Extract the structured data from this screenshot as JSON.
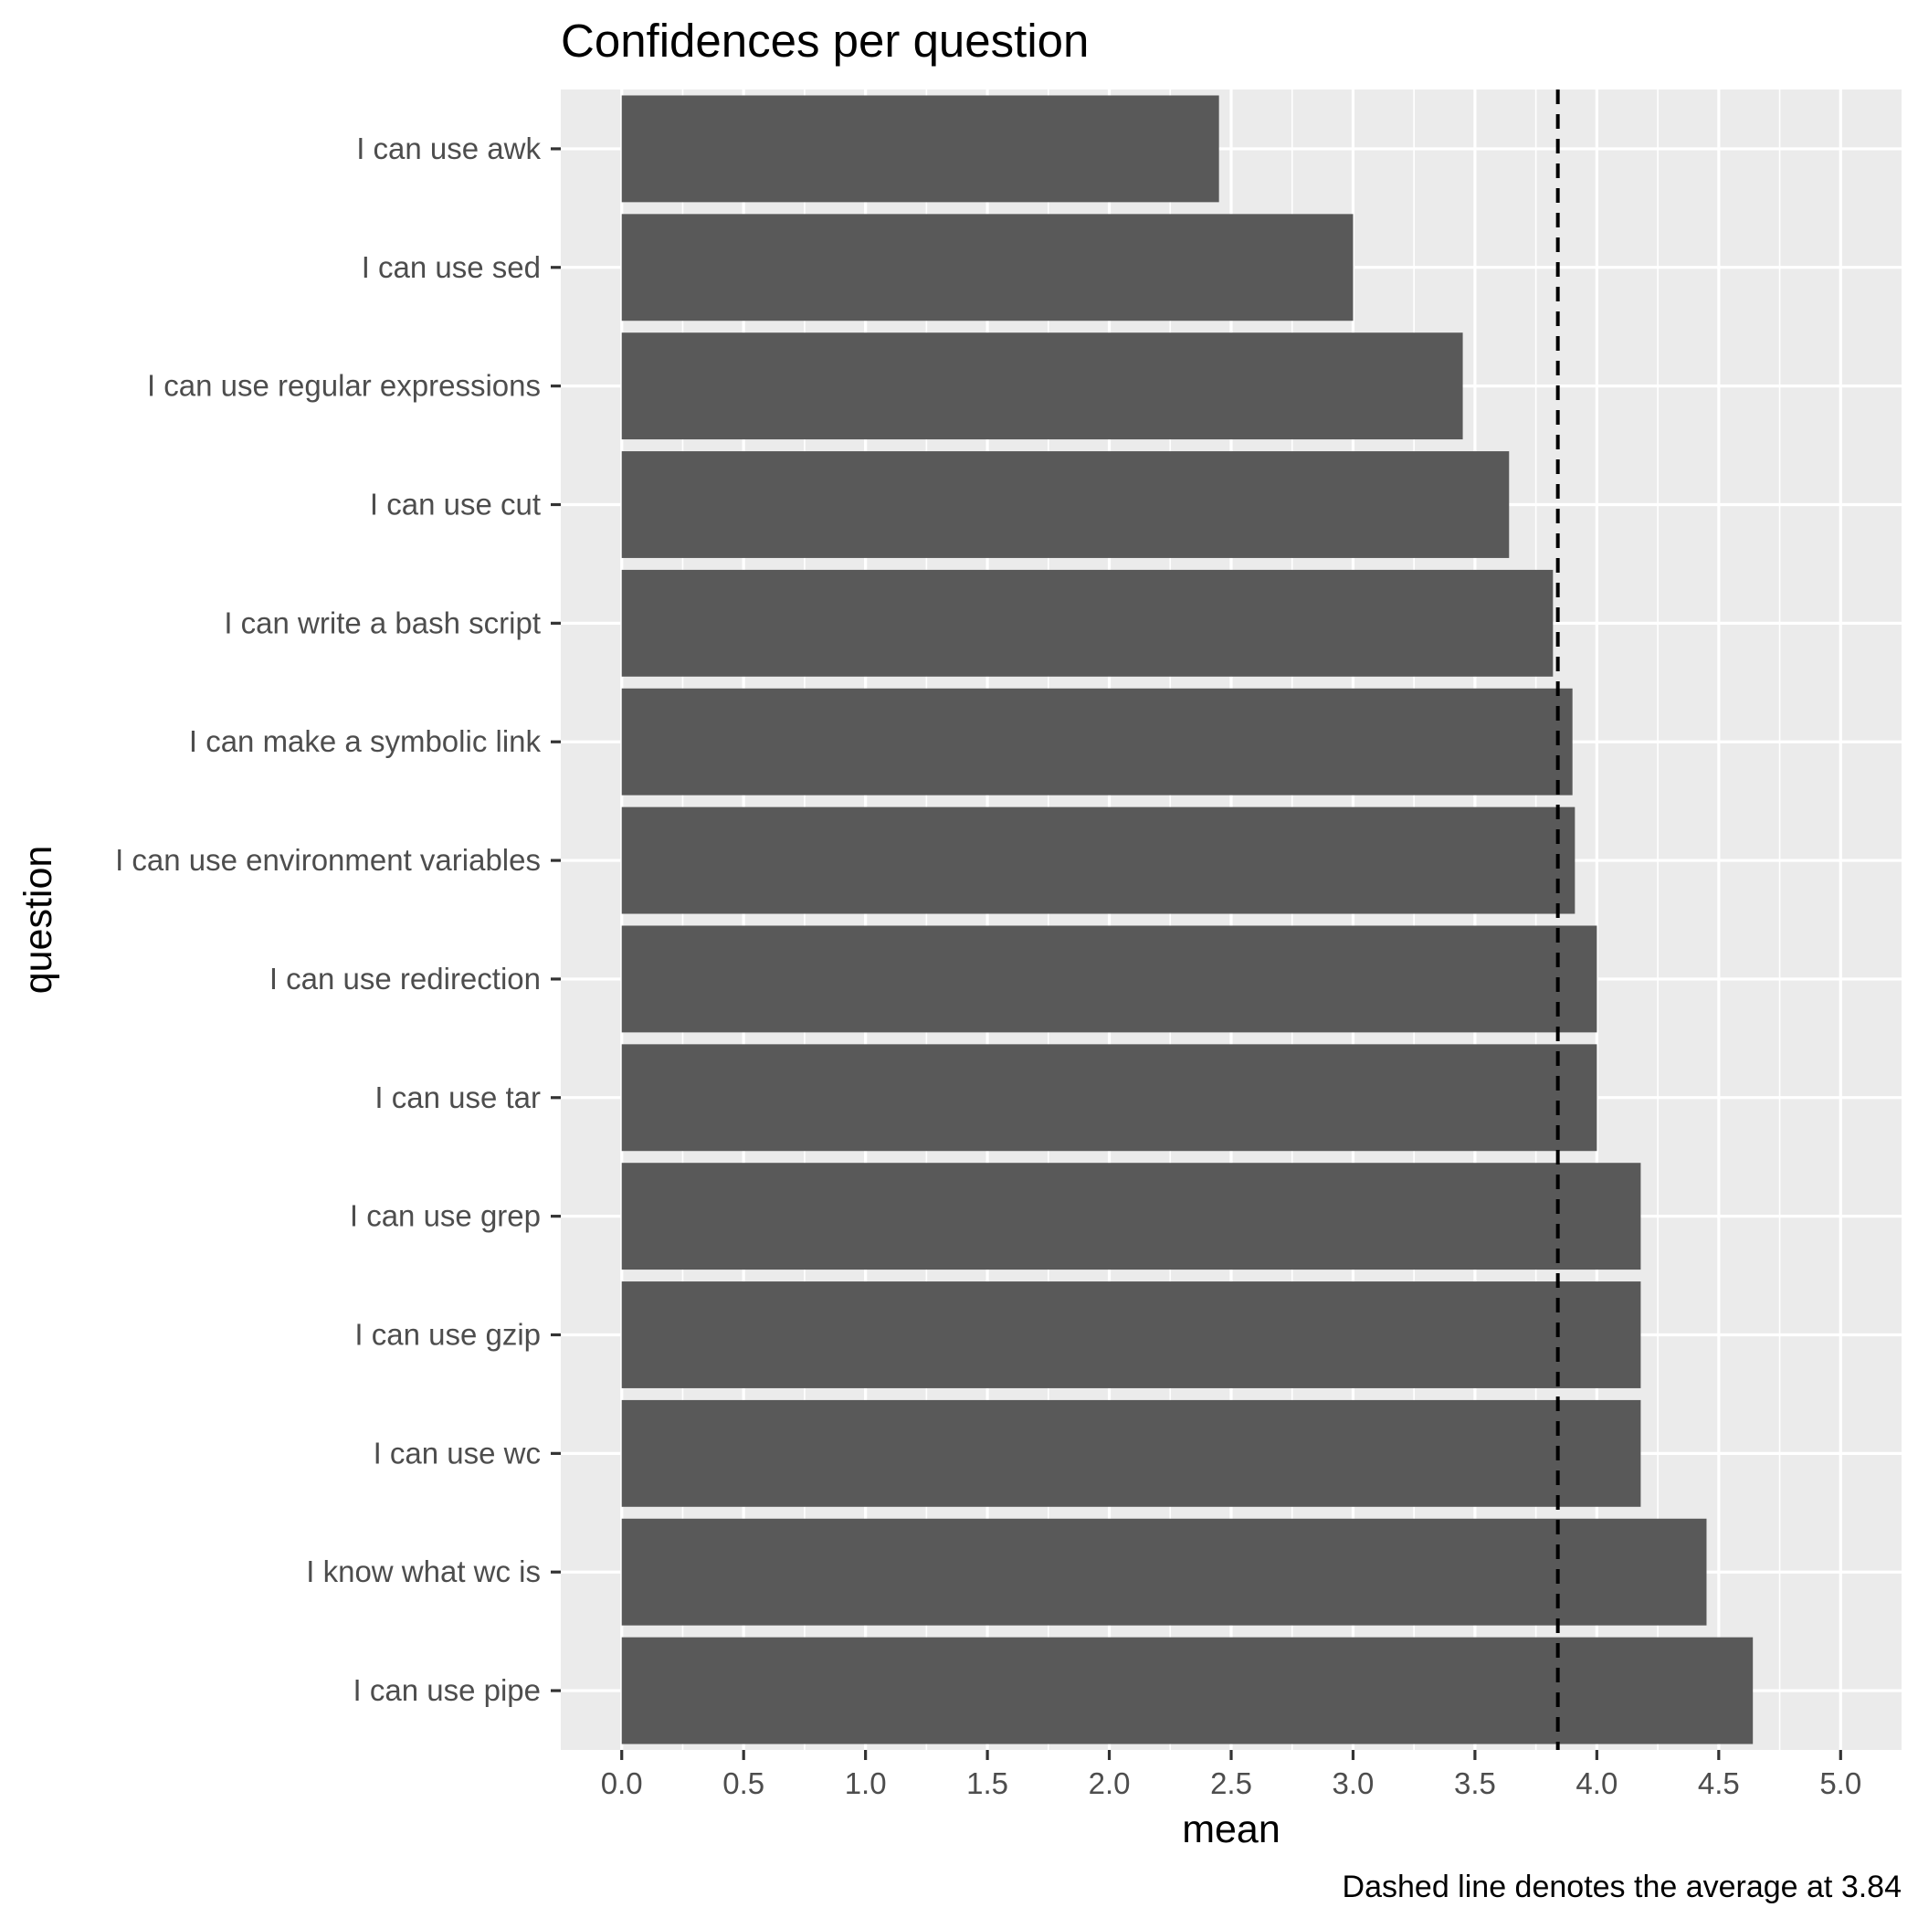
{
  "chart_data": {
    "type": "bar",
    "orientation": "horizontal",
    "title": "Confidences per question",
    "xlabel": "mean",
    "ylabel": "question",
    "caption": "Dashed line denotes the average at 3.84",
    "xlim": [
      -0.25,
      5.25
    ],
    "xticks": [
      0.0,
      0.5,
      1.0,
      1.5,
      2.0,
      2.5,
      3.0,
      3.5,
      4.0,
      4.5,
      5.0
    ],
    "xtick_labels": [
      "0.0",
      "0.5",
      "1.0",
      "1.5",
      "2.0",
      "2.5",
      "3.0",
      "3.5",
      "4.0",
      "4.5",
      "5.0"
    ],
    "categories": [
      "I can use awk",
      "I can use sed",
      "I can use regular expressions",
      "I can use cut",
      "I can write a bash script",
      "I can make a symbolic link",
      "I can use environment variables",
      "I can use redirection",
      "I can use tar",
      "I can use grep",
      "I can use gzip",
      "I can use wc",
      "I know what wc is",
      "I can use pipe"
    ],
    "values": [
      2.45,
      3.0,
      3.45,
      3.64,
      3.82,
      3.9,
      3.91,
      4.0,
      4.0,
      4.18,
      4.18,
      4.18,
      4.45,
      4.64
    ],
    "reference_line": {
      "value": 3.84,
      "style": "dashed"
    },
    "grid": true,
    "legend": "none",
    "colors": {
      "bar": "#595959",
      "panel": "#ebebeb",
      "grid": "#ffffff",
      "reference_line": "#000000"
    }
  }
}
